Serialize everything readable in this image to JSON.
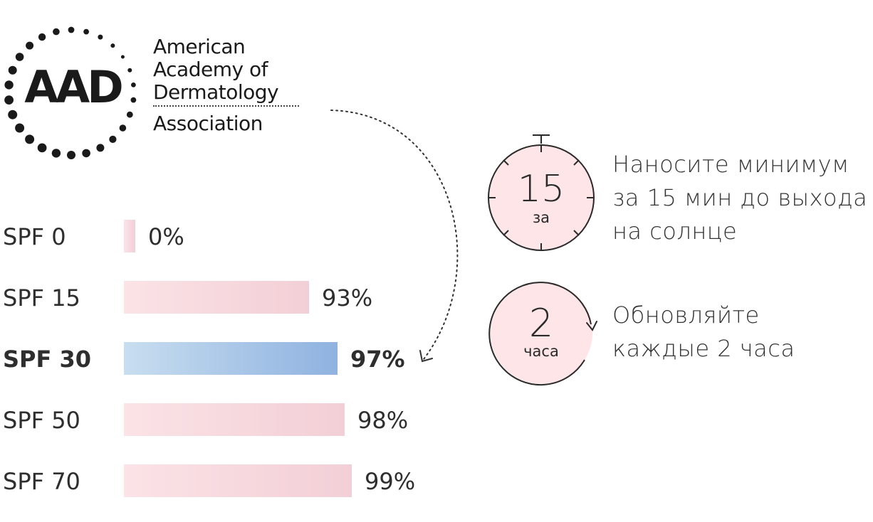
{
  "logo": {
    "letters": "AAD",
    "lines": [
      "American",
      "Academy of",
      "Dermatology",
      "Association"
    ]
  },
  "chart_data": {
    "type": "bar",
    "orientation": "horizontal",
    "categories": [
      "SPF 0",
      "SPF 15",
      "SPF 30",
      "SPF 50",
      "SPF 70"
    ],
    "values": [
      0,
      93,
      97,
      98,
      99
    ],
    "value_labels": [
      "0%",
      "93%",
      "97%",
      "98%",
      "99%"
    ],
    "highlight_index": 2,
    "colors": {
      "bar_start": "#fbe3e6",
      "bar_end": "#f2cfd6",
      "highlight_start": "#c8def0",
      "highlight_end": "#8fb2e0",
      "label": "#2e2e2e"
    },
    "title": "",
    "xlabel": "",
    "ylabel": "",
    "grid": false
  },
  "tips": [
    {
      "icon": "stopwatch-icon",
      "number": "15",
      "unit": "за",
      "text_lines": [
        "Наносите минимум",
        "за 15 мин до выхода",
        "на солнце"
      ]
    },
    {
      "icon": "refresh-circle-icon",
      "number": "2",
      "unit": "часа",
      "text_lines": [
        "Обновляйте",
        "каждые 2 часа"
      ]
    }
  ],
  "colors": {
    "circle_fill": "#fde5e8",
    "stroke": "#2a2a2a"
  }
}
